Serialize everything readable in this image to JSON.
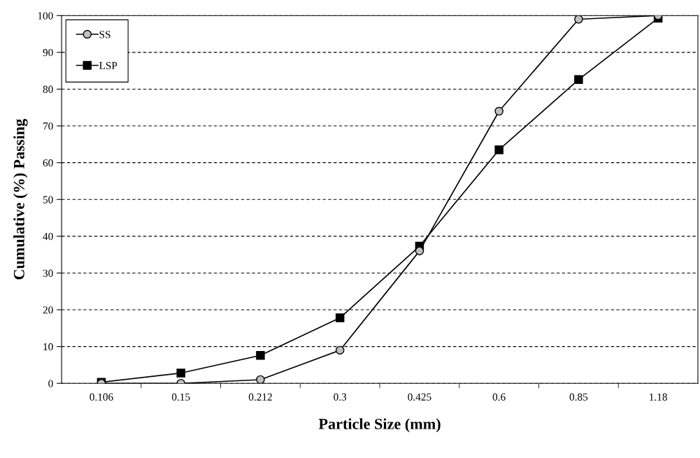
{
  "chart_data": {
    "type": "line",
    "xlabel": "Particle Size (mm)",
    "ylabel": "Cumulative (%) Passing",
    "categories": [
      "0.106",
      "0.15",
      "0.212",
      "0.3",
      "0.425",
      "0.6",
      "0.85",
      "1.18"
    ],
    "series": [
      {
        "name": "SS",
        "color": "#000000",
        "marker": "circle",
        "values": [
          0,
          0,
          1,
          9,
          36,
          74,
          99,
          100
        ]
      },
      {
        "name": "LSP",
        "color": "#000000",
        "marker": "square",
        "values": [
          0.3,
          2.8,
          7.6,
          17.8,
          37.3,
          63.5,
          82.6,
          99.3
        ]
      }
    ],
    "ylim": [
      0,
      100
    ],
    "yticks": [
      0,
      10,
      20,
      30,
      40,
      50,
      60,
      70,
      80,
      90,
      100
    ],
    "grid": "y",
    "legend": "top left",
    "line_style": "solid"
  }
}
